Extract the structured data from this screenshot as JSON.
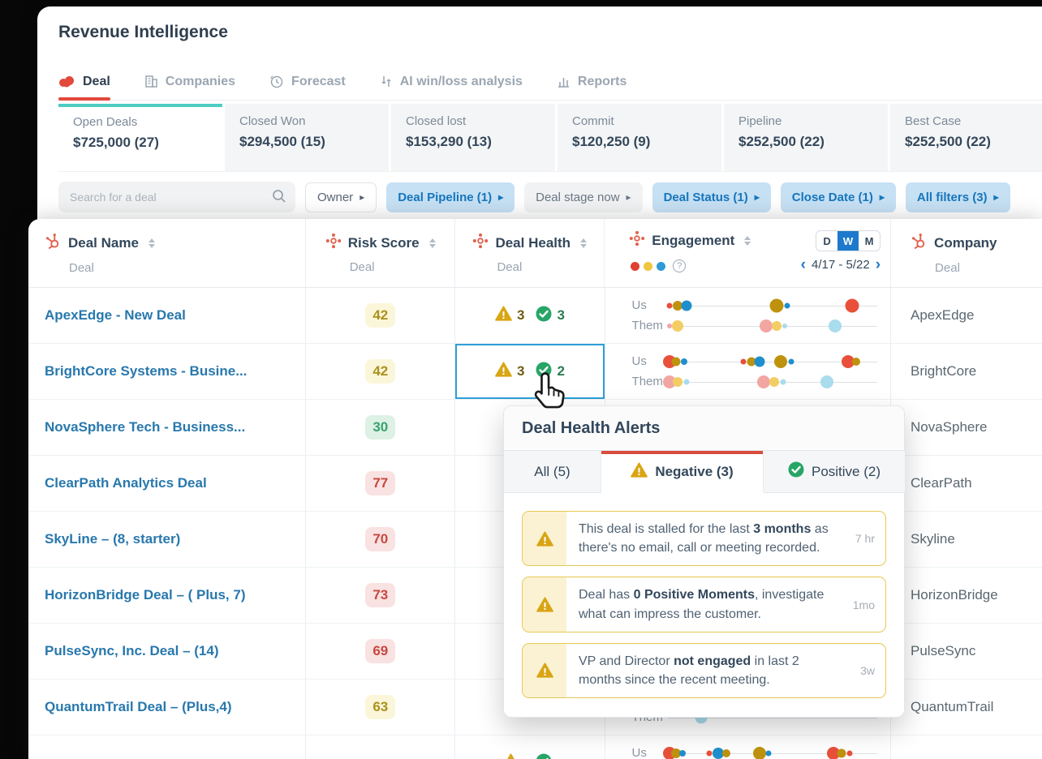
{
  "app": {
    "title": "Revenue Intelligence"
  },
  "nav_tabs": [
    {
      "label": "Deal",
      "icon": "deal-icon",
      "active": true
    },
    {
      "label": "Companies",
      "icon": "companies-icon",
      "active": false
    },
    {
      "label": "Forecast",
      "icon": "forecast-icon",
      "active": false
    },
    {
      "label": "AI win/loss analysis",
      "icon": "ai-icon",
      "active": false
    },
    {
      "label": "Reports",
      "icon": "reports-icon",
      "active": false
    }
  ],
  "summary_cards": [
    {
      "label": "Open Deals",
      "value": "$725,000 (27)",
      "active": true
    },
    {
      "label": "Closed Won",
      "value": "$294,500 (15)",
      "active": false
    },
    {
      "label": "Closed lost",
      "value": "$153,290 (13)",
      "active": false
    },
    {
      "label": "Commit",
      "value": "$120,250 (9)",
      "active": false
    },
    {
      "label": "Pipeline",
      "value": "$252,500 (22)",
      "active": false
    },
    {
      "label": "Best Case",
      "value": "$252,500 (22)",
      "active": false
    }
  ],
  "filter_bar": {
    "search_placeholder": "Search for a deal",
    "filters": [
      {
        "label": "Owner",
        "style": "outline"
      },
      {
        "label": "Deal Pipeline (1)",
        "style": "active"
      },
      {
        "label": "Deal stage now",
        "style": "plain"
      },
      {
        "label": "Deal Status (1)",
        "style": "active"
      },
      {
        "label": "Close Date (1)",
        "style": "active"
      },
      {
        "label": "All filters (3)",
        "style": "active"
      }
    ]
  },
  "table": {
    "columns": [
      {
        "title": "Deal Name",
        "subtitle": "Deal"
      },
      {
        "title": "Risk Score",
        "subtitle": "Deal"
      },
      {
        "title": "Deal Health",
        "subtitle": "Deal"
      },
      {
        "title": "Engagement",
        "subtitle": ""
      },
      {
        "title": "Company",
        "subtitle": "Deal"
      }
    ],
    "engagement_header": {
      "toggle": [
        "D",
        "W",
        "M"
      ],
      "toggle_active": "W",
      "prev": "‹",
      "date_range": "4/17 - 5/22",
      "next": "›",
      "help": "?"
    },
    "engagement_labels": {
      "us": "Us",
      "them": "Them"
    },
    "rows": [
      {
        "name": "ApexEdge - New Deal",
        "risk": {
          "value": "42",
          "tone": "yellow"
        },
        "health": {
          "neg": "3",
          "pos": "3",
          "selected": false
        },
        "company": "ApexEdge",
        "engagement": {
          "us": [
            [
              1,
              "red",
              7
            ],
            [
              5,
              "olive",
              12
            ],
            [
              9,
              "blue",
              13
            ],
            [
              52,
              "olive",
              17
            ],
            [
              57,
              "blue",
              7
            ],
            [
              88,
              "red",
              17
            ]
          ],
          "them": [
            [
              1,
              "pink",
              6
            ],
            [
              5,
              "yellow",
              14
            ],
            [
              47,
              "pink",
              16
            ],
            [
              52,
              "yellow",
              12
            ],
            [
              56,
              "lightblue",
              6
            ],
            [
              80,
              "lightblue",
              16
            ]
          ]
        }
      },
      {
        "name": "BrightCore Systems - Busine...",
        "risk": {
          "value": "42",
          "tone": "yellow"
        },
        "health": {
          "neg": "3",
          "pos": "2",
          "selected": true
        },
        "company": "BrightCore",
        "engagement": {
          "us": [
            [
              1,
              "red",
              16
            ],
            [
              4,
              "olive",
              11
            ],
            [
              8,
              "blue",
              8
            ],
            [
              36,
              "red",
              7
            ],
            [
              40,
              "olive",
              11
            ],
            [
              44,
              "blue",
              13
            ],
            [
              54,
              "olive",
              16
            ],
            [
              59,
              "blue",
              7
            ],
            [
              86,
              "red",
              16
            ],
            [
              90,
              "olive",
              10
            ]
          ],
          "them": [
            [
              1,
              "pink",
              16
            ],
            [
              5,
              "yellow",
              12
            ],
            [
              9,
              "lightblue",
              7
            ],
            [
              46,
              "pink",
              16
            ],
            [
              51,
              "yellow",
              12
            ],
            [
              55,
              "lightblue",
              7
            ],
            [
              76,
              "lightblue",
              16
            ]
          ]
        }
      },
      {
        "name": "NovaSphere Tech - Business...",
        "risk": {
          "value": "30",
          "tone": "green"
        },
        "health": null,
        "company": "NovaSphere",
        "engagement": {
          "us": [
            [
              86,
              "red",
              16
            ],
            [
              90,
              "olive",
              10
            ]
          ],
          "them": []
        }
      },
      {
        "name": "ClearPath Analytics Deal",
        "risk": {
          "value": "77",
          "tone": "red"
        },
        "health": null,
        "company": "ClearPath",
        "engagement": {
          "us": [
            [
              86,
              "red",
              16
            ],
            [
              90,
              "olive",
              10
            ]
          ],
          "them": []
        }
      },
      {
        "name": "SkyLine – (8, starter)",
        "risk": {
          "value": "70",
          "tone": "red"
        },
        "health": null,
        "company": "Skyline",
        "engagement": {
          "us": [
            [
              86,
              "red",
              15
            ]
          ],
          "them": []
        }
      },
      {
        "name": "HorizonBridge Deal – ( Plus, 7)",
        "risk": {
          "value": "73",
          "tone": "red"
        },
        "health": null,
        "company": "HorizonBridge",
        "engagement": {
          "us": [
            [
              86,
              "red",
              16
            ],
            [
              90,
              "olive",
              10
            ]
          ],
          "them": []
        }
      },
      {
        "name": "PulseSync, Inc. Deal – (14)",
        "risk": {
          "value": "69",
          "tone": "red"
        },
        "health": null,
        "company": "PulseSync",
        "engagement": {
          "us": [
            [
              86,
              "red",
              15
            ]
          ],
          "them": []
        }
      },
      {
        "name": "QuantumTrail Deal – (Plus,4)",
        "risk": {
          "value": "63",
          "tone": "yellow"
        },
        "health": null,
        "company": "QuantumTrail",
        "engagement": {
          "us": [
            [
              86,
              "red",
              15
            ]
          ],
          "them": [
            [
              16,
              "lightblue",
              15
            ]
          ]
        }
      },
      {
        "name": "",
        "risk": {
          "value": "",
          "tone": "red"
        },
        "health": {
          "neg": "",
          "pos": "",
          "selected": false
        },
        "company": "",
        "engagement": {
          "us": [
            [
              1,
              "red",
              16
            ],
            [
              4,
              "olive",
              12
            ],
            [
              7,
              "blue",
              8
            ],
            [
              20,
              "red",
              7
            ],
            [
              24,
              "blue",
              14
            ],
            [
              28,
              "olive",
              10
            ],
            [
              44,
              "olive",
              16
            ],
            [
              48,
              "blue",
              7
            ],
            [
              79,
              "red",
              16
            ],
            [
              83,
              "olive",
              11
            ],
            [
              87,
              "red",
              7
            ]
          ],
          "them": []
        }
      }
    ]
  },
  "popup": {
    "title": "Deal Health Alerts",
    "tabs": [
      {
        "label": "All (5)",
        "icon": "",
        "active": false
      },
      {
        "label": "Negative (3)",
        "icon": "warning",
        "active": true
      },
      {
        "label": "Positive (2)",
        "icon": "check",
        "active": false
      }
    ],
    "alerts": [
      {
        "segments": [
          [
            "This deal is stalled for the last ",
            0
          ],
          [
            "3 months",
            1
          ],
          [
            " as there's no email, call or meeting recorded.",
            0
          ]
        ],
        "time": "7 hr"
      },
      {
        "segments": [
          [
            "Deal has ",
            0
          ],
          [
            "0 Positive Moments",
            1
          ],
          [
            ", investigate what can impress the customer.",
            0
          ]
        ],
        "time": "1mo"
      },
      {
        "segments": [
          [
            "VP and Director ",
            0
          ],
          [
            "not engaged",
            1
          ],
          [
            " in last 2 months since the recent meeting.",
            0
          ]
        ],
        "time": "3w"
      }
    ]
  },
  "colors": {
    "accent_red": "#e2493b",
    "teal": "#4ecdc3",
    "toggle_blue": "#1d79cb",
    "link_blue": "#2878ad",
    "legend": [
      "#e0402f",
      "#f0c63f",
      "#2e9bd6"
    ],
    "dots": {
      "red": "#e8503a",
      "olive": "#bf920e",
      "blue": "#1e8fcc",
      "pink": "#f2a6a2",
      "yellow": "#f3cd63",
      "lightblue": "#a9dced"
    }
  }
}
